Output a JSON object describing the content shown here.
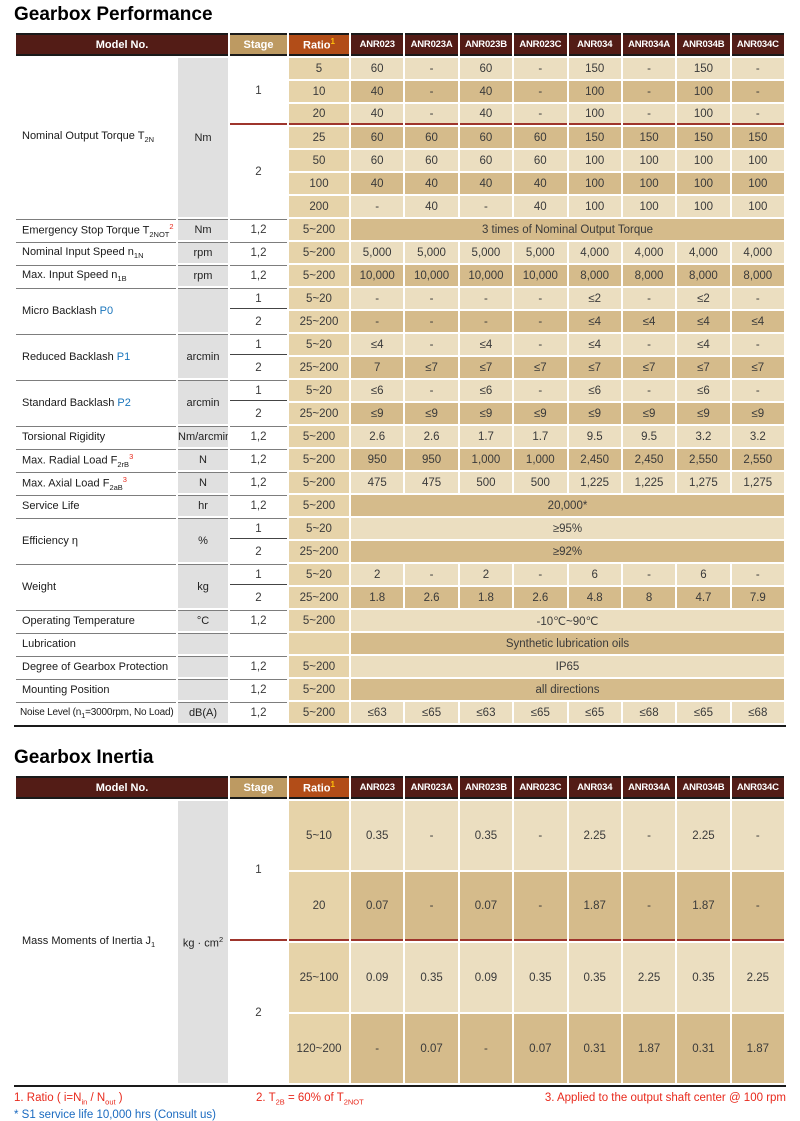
{
  "titles": {
    "performance": "Gearbox Performance",
    "inertia": "Gearbox Inertia"
  },
  "header": {
    "model_no": "Model No.",
    "stage": "Stage",
    "ratio": "Ratio",
    "ratio_sup": "1",
    "models": [
      "ANR023",
      "ANR023A",
      "ANR023B",
      "ANR023C",
      "ANR034",
      "ANR034A",
      "ANR034B",
      "ANR034C"
    ]
  },
  "colors": {
    "header_maroon": "#531c16",
    "header_bronze": "#bd9a62",
    "header_rust": "#b24d18",
    "cell_light": "#ebdec0",
    "cell_dark": "#d5bb8b",
    "ratio_col": "#e6d3a9",
    "unit_col": "#e0e0e0",
    "red_divider": "#9e352c",
    "note_red": "#e8291c",
    "note_blue": "#1a6ac0"
  },
  "performance": {
    "sections": [
      {
        "lab": [
          {
            "t": "Nominal Output Torque T"
          },
          {
            "t": "2N",
            "s": "sub"
          }
        ],
        "unit": [
          {
            "t": "Nm"
          }
        ],
        "div": "red",
        "groups": [
          {
            "st": "1",
            "rows": [
              {
                "r": "5",
                "sh": "l",
                "c": [
                  "60",
                  "-",
                  "60",
                  "-",
                  "150",
                  "-",
                  "150",
                  "-"
                ]
              },
              {
                "r": "10",
                "sh": "d",
                "c": [
                  "40",
                  "-",
                  "40",
                  "-",
                  "100",
                  "-",
                  "100",
                  "-"
                ]
              },
              {
                "r": "20",
                "sh": "l",
                "c": [
                  "40",
                  "-",
                  "40",
                  "-",
                  "100",
                  "-",
                  "100",
                  "-"
                ]
              }
            ]
          },
          {
            "st": "2",
            "rows": [
              {
                "r": "25",
                "sh": "d",
                "c": [
                  "60",
                  "60",
                  "60",
                  "60",
                  "150",
                  "150",
                  "150",
                  "150"
                ]
              },
              {
                "r": "50",
                "sh": "l",
                "c": [
                  "60",
                  "60",
                  "60",
                  "60",
                  "100",
                  "100",
                  "100",
                  "100"
                ]
              },
              {
                "r": "100",
                "sh": "d",
                "c": [
                  "40",
                  "40",
                  "40",
                  "40",
                  "100",
                  "100",
                  "100",
                  "100"
                ]
              },
              {
                "r": "200",
                "sh": "l",
                "c": [
                  "-",
                  "40",
                  "-",
                  "40",
                  "100",
                  "100",
                  "100",
                  "100"
                ]
              }
            ]
          }
        ]
      },
      {
        "lab": [
          {
            "t": "Emergency Stop Torque T"
          },
          {
            "t": "2NOT",
            "s": "sub"
          },
          {
            "t": "2",
            "s": "supred"
          }
        ],
        "unit": [
          {
            "t": "Nm"
          }
        ],
        "groups": [
          {
            "st": "1,2",
            "rows": [
              {
                "r": "5~200",
                "sh": "d",
                "m": "3 times of Nominal Output Torque"
              }
            ]
          }
        ]
      },
      {
        "lab": [
          {
            "t": "Nominal Input Speed n"
          },
          {
            "t": "1N",
            "s": "sub"
          }
        ],
        "unit": [
          {
            "t": "rpm"
          }
        ],
        "groups": [
          {
            "st": "1,2",
            "rows": [
              {
                "r": "5~200",
                "sh": "l",
                "c": [
                  "5,000",
                  "5,000",
                  "5,000",
                  "5,000",
                  "4,000",
                  "4,000",
                  "4,000",
                  "4,000"
                ]
              }
            ]
          }
        ]
      },
      {
        "lab": [
          {
            "t": "Max. Input Speed n"
          },
          {
            "t": "1B",
            "s": "sub"
          }
        ],
        "unit": [
          {
            "t": "rpm"
          }
        ],
        "groups": [
          {
            "st": "1,2",
            "rows": [
              {
                "r": "5~200",
                "sh": "d",
                "c": [
                  "10,000",
                  "10,000",
                  "10,000",
                  "10,000",
                  "8,000",
                  "8,000",
                  "8,000",
                  "8,000"
                ]
              }
            ]
          }
        ]
      },
      {
        "lab": [
          {
            "t": "Micro Backlash "
          },
          {
            "t": "P0",
            "s": "blue"
          }
        ],
        "unit": [],
        "div": "black",
        "groups": [
          {
            "st": "1",
            "rows": [
              {
                "r": "5~20",
                "sh": "l",
                "c": [
                  "-",
                  "-",
                  "-",
                  "-",
                  "≤2",
                  "-",
                  "≤2",
                  "-"
                ]
              }
            ]
          },
          {
            "st": "2",
            "rows": [
              {
                "r": "25~200",
                "sh": "d",
                "c": [
                  "-",
                  "-",
                  "-",
                  "-",
                  "≤4",
                  "≤4",
                  "≤4",
                  "≤4"
                ]
              }
            ]
          }
        ]
      },
      {
        "lab": [
          {
            "t": "Reduced Backlash "
          },
          {
            "t": "P1",
            "s": "blue"
          }
        ],
        "unit": [
          {
            "t": "arcmin"
          }
        ],
        "div": "black",
        "groups": [
          {
            "st": "1",
            "rows": [
              {
                "r": "5~20",
                "sh": "l",
                "c": [
                  "≤4",
                  "-",
                  "≤4",
                  "-",
                  "≤4",
                  "-",
                  "≤4",
                  "-"
                ]
              }
            ]
          },
          {
            "st": "2",
            "rows": [
              {
                "r": "25~200",
                "sh": "d",
                "c": [
                  "7",
                  "≤7",
                  "≤7",
                  "≤7",
                  "≤7",
                  "≤7",
                  "≤7",
                  "≤7"
                ]
              }
            ]
          }
        ]
      },
      {
        "lab": [
          {
            "t": "Standard Backlash "
          },
          {
            "t": "P2",
            "s": "blue"
          }
        ],
        "unit": [
          {
            "t": "arcmin"
          }
        ],
        "div": "black",
        "groups": [
          {
            "st": "1",
            "rows": [
              {
                "r": "5~20",
                "sh": "l",
                "c": [
                  "≤6",
                  "-",
                  "≤6",
                  "-",
                  "≤6",
                  "-",
                  "≤6",
                  "-"
                ]
              }
            ]
          },
          {
            "st": "2",
            "rows": [
              {
                "r": "25~200",
                "sh": "d",
                "c": [
                  "≤9",
                  "≤9",
                  "≤9",
                  "≤9",
                  "≤9",
                  "≤9",
                  "≤9",
                  "≤9"
                ]
              }
            ]
          }
        ]
      },
      {
        "lab": [
          {
            "t": "Torsional Rigidity"
          }
        ],
        "unit": [
          {
            "t": "Nm/arcmin"
          }
        ],
        "groups": [
          {
            "st": "1,2",
            "rows": [
              {
                "r": "5~200",
                "sh": "l",
                "c": [
                  "2.6",
                  "2.6",
                  "1.7",
                  "1.7",
                  "9.5",
                  "9.5",
                  "3.2",
                  "3.2"
                ]
              }
            ]
          }
        ]
      },
      {
        "lab": [
          {
            "t": "Max. Radial Load F"
          },
          {
            "t": "2rB",
            "s": "sub"
          },
          {
            "t": "3",
            "s": "supred"
          }
        ],
        "unit": [
          {
            "t": "N"
          }
        ],
        "groups": [
          {
            "st": "1,2",
            "rows": [
              {
                "r": "5~200",
                "sh": "d",
                "c": [
                  "950",
                  "950",
                  "1,000",
                  "1,000",
                  "2,450",
                  "2,450",
                  "2,550",
                  "2,550"
                ]
              }
            ]
          }
        ]
      },
      {
        "lab": [
          {
            "t": "Max. Axial Load F"
          },
          {
            "t": "2aB",
            "s": "sub"
          },
          {
            "t": "3",
            "s": "supred"
          }
        ],
        "unit": [
          {
            "t": "N"
          }
        ],
        "groups": [
          {
            "st": "1,2",
            "rows": [
              {
                "r": "5~200",
                "sh": "l",
                "c": [
                  "475",
                  "475",
                  "500",
                  "500",
                  "1,225",
                  "1,225",
                  "1,275",
                  "1,275"
                ]
              }
            ]
          }
        ]
      },
      {
        "lab": [
          {
            "t": "Service Life"
          }
        ],
        "unit": [
          {
            "t": "hr"
          }
        ],
        "groups": [
          {
            "st": "1,2",
            "rows": [
              {
                "r": "5~200",
                "sh": "d",
                "m": "20,000*"
              }
            ]
          }
        ]
      },
      {
        "lab": [
          {
            "t": "Efficiency η"
          }
        ],
        "unit": [
          {
            "t": "%"
          }
        ],
        "div": "black",
        "groups": [
          {
            "st": "1",
            "rows": [
              {
                "r": "5~20",
                "sh": "l",
                "m": "≥95%"
              }
            ]
          },
          {
            "st": "2",
            "rows": [
              {
                "r": "25~200",
                "sh": "d",
                "m": "≥92%"
              }
            ]
          }
        ]
      },
      {
        "lab": [
          {
            "t": "Weight"
          }
        ],
        "unit": [
          {
            "t": "kg"
          }
        ],
        "div": "black",
        "groups": [
          {
            "st": "1",
            "rows": [
              {
                "r": "5~20",
                "sh": "l",
                "c": [
                  "2",
                  "-",
                  "2",
                  "-",
                  "6",
                  "-",
                  "6",
                  "-"
                ]
              }
            ]
          },
          {
            "st": "2",
            "rows": [
              {
                "r": "25~200",
                "sh": "d",
                "c": [
                  "1.8",
                  "2.6",
                  "1.8",
                  "2.6",
                  "4.8",
                  "8",
                  "4.7",
                  "7.9"
                ]
              }
            ]
          }
        ]
      },
      {
        "lab": [
          {
            "t": "Operating Temperature"
          }
        ],
        "unit": [
          {
            "t": "°C"
          }
        ],
        "groups": [
          {
            "st": "1,2",
            "rows": [
              {
                "r": "5~200",
                "sh": "l",
                "m": "-10℃~90℃"
              }
            ]
          }
        ]
      },
      {
        "lab": [
          {
            "t": "Lubrication"
          }
        ],
        "unit": [],
        "groups": [
          {
            "st": "",
            "rows": [
              {
                "r": "",
                "sh": "d",
                "m": "Synthetic lubrication oils"
              }
            ]
          }
        ]
      },
      {
        "lab": [
          {
            "t": "Degree of Gearbox Protection"
          }
        ],
        "unit": [],
        "groups": [
          {
            "st": "1,2",
            "rows": [
              {
                "r": "5~200",
                "sh": "l",
                "m": "IP65"
              }
            ]
          }
        ]
      },
      {
        "lab": [
          {
            "t": "Mounting Position"
          }
        ],
        "unit": [],
        "groups": [
          {
            "st": "1,2",
            "rows": [
              {
                "r": "5~200",
                "sh": "d",
                "m": "all directions"
              }
            ]
          }
        ]
      },
      {
        "lab": [
          {
            "t": "Noise Level (n"
          },
          {
            "t": "1",
            "s": "sub"
          },
          {
            "t": "=3000rpm, No Load)"
          }
        ],
        "unit": [
          {
            "t": "dB(A)"
          }
        ],
        "small": true,
        "groups": [
          {
            "st": "1,2",
            "rows": [
              {
                "r": "5~200",
                "sh": "l",
                "c": [
                  "≤63",
                  "≤65",
                  "≤63",
                  "≤65",
                  "≤65",
                  "≤68",
                  "≤65",
                  "≤68"
                ]
              }
            ]
          }
        ]
      }
    ]
  },
  "inertia": {
    "sections": [
      {
        "lab": [
          {
            "t": "Mass Moments of Inertia J"
          },
          {
            "t": "1",
            "s": "sub"
          }
        ],
        "unit": [
          {
            "t": "kg · cm"
          },
          {
            "t": "2",
            "s": "sup"
          }
        ],
        "div": "red",
        "groups": [
          {
            "st": "1",
            "rows": [
              {
                "r": "5~10",
                "sh": "l",
                "c": [
                  "0.35",
                  "-",
                  "0.35",
                  "-",
                  "2.25",
                  "-",
                  "2.25",
                  "-"
                ]
              },
              {
                "r": "20",
                "sh": "d",
                "c": [
                  "0.07",
                  "-",
                  "0.07",
                  "-",
                  "1.87",
                  "-",
                  "1.87",
                  "-"
                ]
              }
            ]
          },
          {
            "st": "2",
            "rows": [
              {
                "r": "25~100",
                "sh": "l",
                "c": [
                  "0.09",
                  "0.35",
                  "0.09",
                  "0.35",
                  "0.35",
                  "2.25",
                  "0.35",
                  "2.25"
                ]
              },
              {
                "r": "120~200",
                "sh": "d",
                "c": [
                  "-",
                  "0.07",
                  "-",
                  "0.07",
                  "0.31",
                  "1.87",
                  "0.31",
                  "1.87"
                ]
              }
            ]
          }
        ]
      }
    ]
  },
  "footnotes": {
    "red": [
      [
        {
          "t": "1. Ratio ( i=N"
        },
        {
          "t": "in",
          "s": "sub"
        },
        {
          "t": " / N"
        },
        {
          "t": "out",
          "s": "sub"
        },
        {
          "t": " )"
        }
      ],
      [
        {
          "t": "2. T"
        },
        {
          "t": "2B",
          "s": "sub"
        },
        {
          "t": " = 60% of T"
        },
        {
          "t": "2NOT",
          "s": "sub"
        }
      ],
      [
        {
          "t": "3. Applied to the output shaft center @ 100 rpm"
        }
      ]
    ],
    "blue": [
      [
        {
          "t": "* S1 service life 10,000 hrs (Consult us)"
        }
      ]
    ]
  }
}
